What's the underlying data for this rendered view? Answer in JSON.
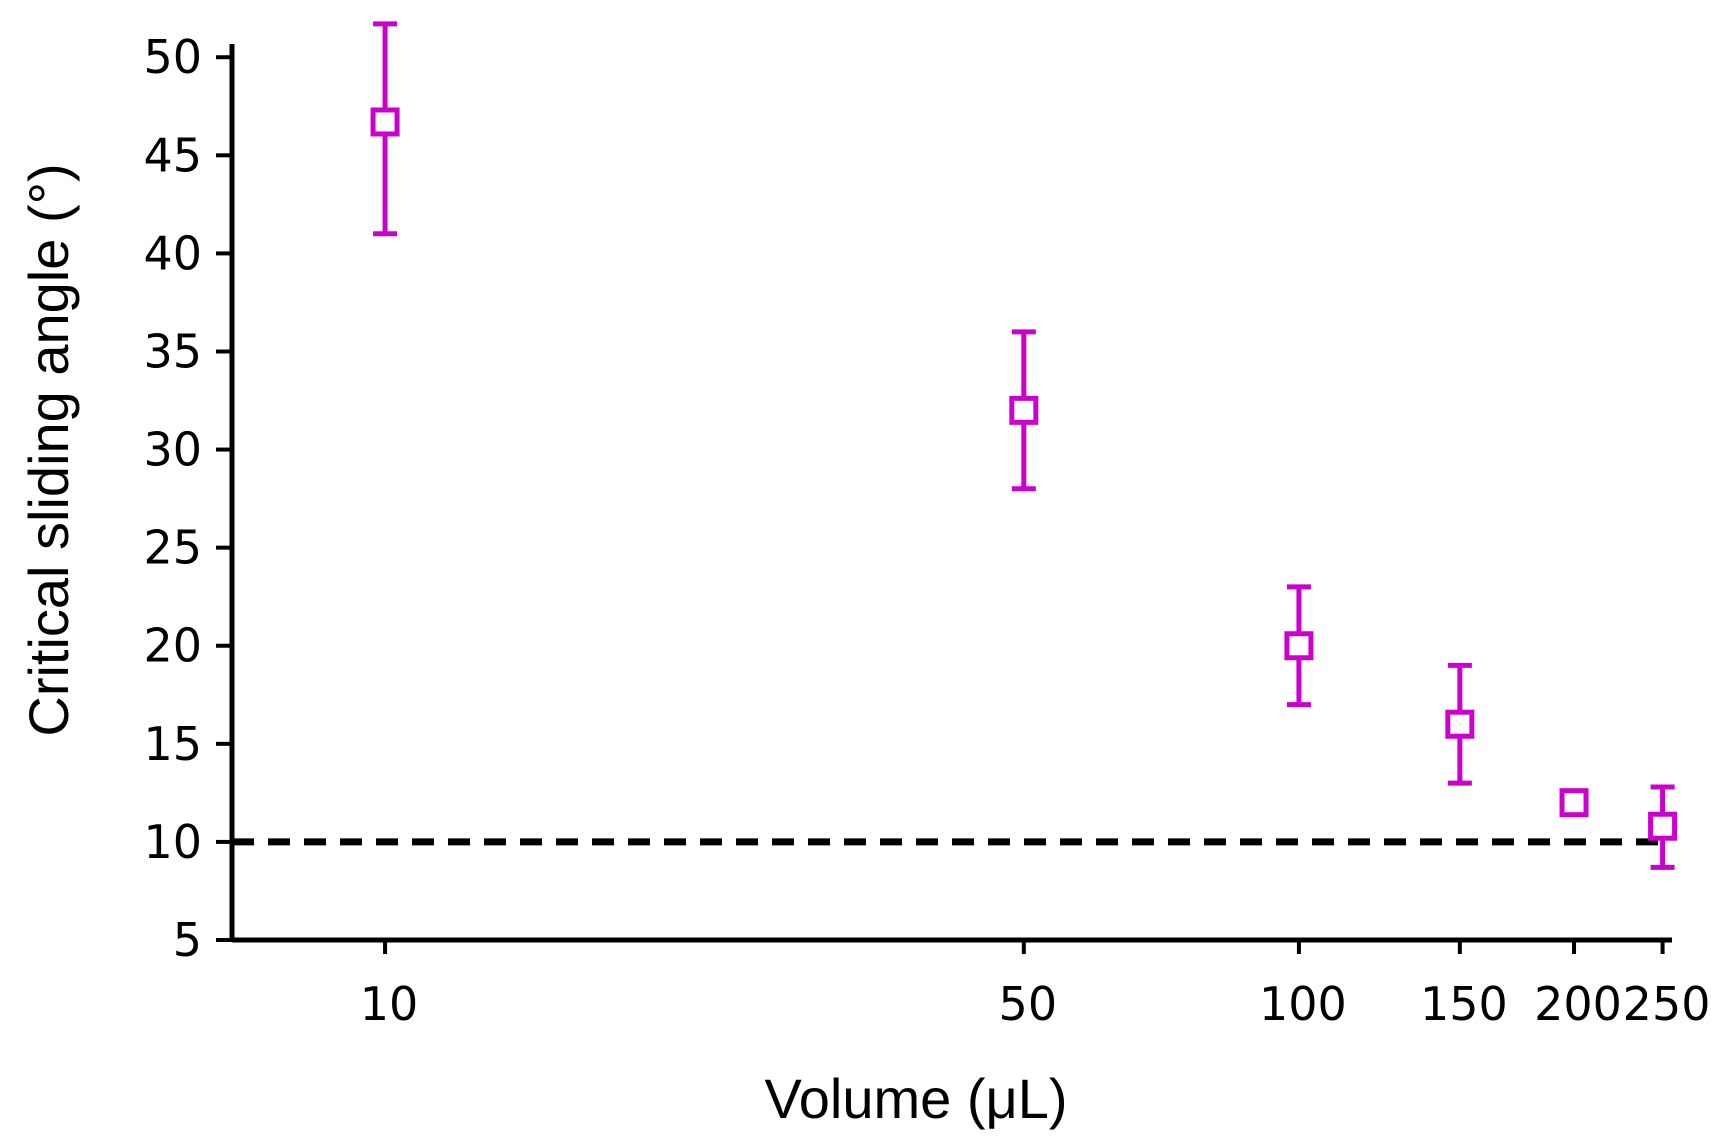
{
  "chart_data": {
    "type": "scatter",
    "title": "",
    "xlabel": "Volume (μL)",
    "ylabel": "Critical sliding angle (°)",
    "x_scale": "log",
    "xlim": [
      6.8,
      256
    ],
    "ylim": [
      5,
      52
    ],
    "x_ticks": [
      10,
      50,
      100,
      150,
      200,
      250
    ],
    "x_tick_labels": [
      "10",
      "50",
      "100",
      "150",
      "200",
      "250"
    ],
    "y_ticks": [
      5,
      10,
      15,
      20,
      25,
      30,
      35,
      40,
      45,
      50
    ],
    "y_tick_labels": [
      "5",
      "10",
      "15",
      "20",
      "25",
      "30",
      "35",
      "40",
      "45",
      "50"
    ],
    "grid": false,
    "series": [
      {
        "name": "Critical sliding angle",
        "marker": "open-square",
        "color": "#cc00cc",
        "x": [
          10,
          50,
          100,
          150,
          200,
          250
        ],
        "y": [
          46.7,
          32.0,
          20.0,
          16.0,
          12.0,
          10.8
        ],
        "y_err_low": [
          41.0,
          28.0,
          17.0,
          13.0,
          11.5,
          8.7
        ],
        "y_err_high": [
          51.7,
          36.0,
          23.0,
          19.0,
          12.5,
          12.8
        ]
      }
    ],
    "reference_line": {
      "y": 10,
      "style": "dashed",
      "color": "#000000"
    }
  }
}
